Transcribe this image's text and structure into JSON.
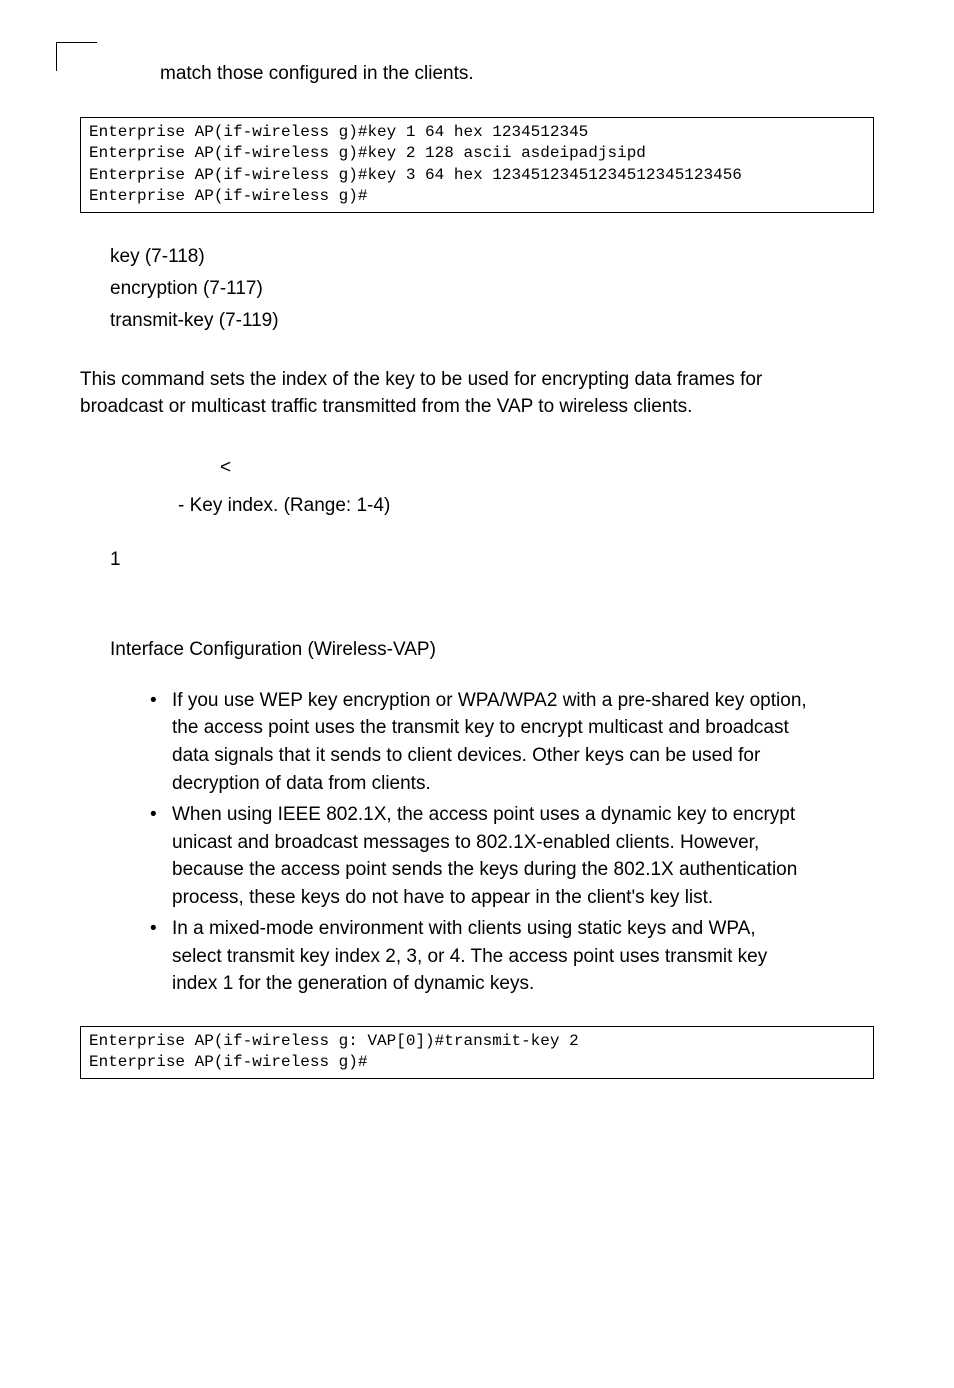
{
  "intro_line": "match those configured in the clients.",
  "code1": {
    "l1": "Enterprise AP(if-wireless g)#key 1 64 hex 1234512345",
    "l2": "Enterprise AP(if-wireless g)#key 2 128 ascii asdeipadjsipd",
    "l3": "Enterprise AP(if-wireless g)#key 3 64 hex 12345123451234512345123456",
    "l4": "Enterprise AP(if-wireless g)#"
  },
  "related": {
    "r1": "key (7-118)",
    "r2": "encryption (7-117)",
    "r3": "transmit-key (7-119)"
  },
  "desc_line1": "This command sets the index of the key to be used for encrypting data frames for",
  "desc_line2": "broadcast or multicast traffic transmitted from the VAP to wireless clients.",
  "syntax": {
    "symbol": "<",
    "range": "- Key index. (Range: 1-4)"
  },
  "default_val": "1",
  "mode": "Interface Configuration (Wireless-VAP)",
  "bullets": {
    "b1l1": "If you use WEP key encryption or WPA/WPA2 with a pre-shared key option,",
    "b1l2": "the access point uses the transmit key to encrypt multicast and broadcast",
    "b1l3": "data signals that it sends to client devices. Other keys can be used for",
    "b1l4": "decryption of data from clients.",
    "b2l1": "When using IEEE 802.1X, the access point uses a dynamic key to encrypt",
    "b2l2": "unicast and broadcast messages to 802.1X-enabled clients. However,",
    "b2l3": "because the access point sends the keys during the 802.1X authentication",
    "b2l4": "process, these keys do not have to appear in the client's key list.",
    "b3l1": "In a mixed-mode environment with clients using static keys and WPA,",
    "b3l2": "select transmit key index 2, 3, or 4. The access point uses transmit key",
    "b3l3": "index 1 for the generation of dynamic keys."
  },
  "code2": {
    "l1": "Enterprise AP(if-wireless g: VAP[0])#transmit-key 2",
    "l2": "Enterprise AP(if-wireless g)#"
  }
}
